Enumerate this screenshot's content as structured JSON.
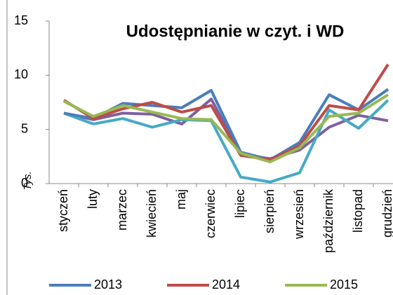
{
  "chart_data": {
    "type": "line",
    "title": "Udostępnianie w czyt. i WD",
    "ylabel": "Tys.",
    "categories": [
      "styczeń",
      "luty",
      "marzec",
      "kwiecień",
      "maj",
      "czerwiec",
      "lipiec",
      "sierpień",
      "wrzesień",
      "październik",
      "listopad",
      "grudzień"
    ],
    "series": [
      {
        "color": "#7d60a0",
        "values": [
          6.5,
          5.9,
          6.5,
          6.4,
          5.5,
          7.8,
          2.7,
          2.3,
          3.1,
          5.2,
          6.3,
          5.8
        ]
      },
      {
        "color": "#46aac5",
        "values": [
          6.5,
          5.5,
          6.0,
          5.2,
          5.9,
          5.8,
          0.6,
          0.15,
          1.0,
          6.8,
          5.1,
          7.7
        ]
      },
      {
        "name": "2013",
        "color": "#4a7ebb",
        "values": [
          6.5,
          6.0,
          7.4,
          7.2,
          7.0,
          8.6,
          2.9,
          2.2,
          3.8,
          8.2,
          6.8,
          8.7
        ]
      },
      {
        "name": "2014",
        "color": "#be4b48",
        "values": [
          7.7,
          6.0,
          6.9,
          7.5,
          6.6,
          7.2,
          2.6,
          2.2,
          3.5,
          7.2,
          6.8,
          11.0
        ]
      },
      {
        "name": "2015",
        "color": "#98b954",
        "values": [
          7.6,
          6.2,
          7.2,
          6.6,
          6.0,
          5.9,
          2.8,
          2.0,
          3.3,
          6.2,
          6.5,
          8.2
        ]
      }
    ],
    "ylim": [
      0,
      15
    ],
    "yticks": [
      0,
      5,
      10,
      15
    ]
  }
}
